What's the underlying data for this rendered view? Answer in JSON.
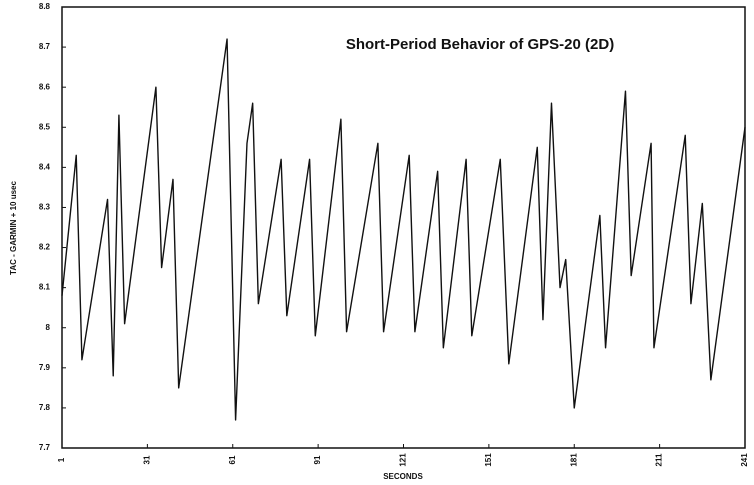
{
  "chart_data": {
    "type": "line",
    "title": "Short-Period Behavior of GPS-20 (2D)",
    "x_label": "SECONDS",
    "y_label": "TAC - GARMIN + 10 usec",
    "x": [
      1,
      6,
      8,
      17,
      19,
      21,
      23,
      34,
      36,
      40,
      42,
      59,
      62,
      66,
      68,
      70,
      78,
      80,
      88,
      90,
      99,
      101,
      112,
      114,
      123,
      125,
      133,
      135,
      143,
      145,
      155,
      158,
      168,
      170,
      173,
      176,
      178,
      181,
      190,
      192,
      199,
      201,
      208,
      209,
      220,
      222,
      226,
      229,
      241
    ],
    "series": [
      {
        "color": "#111111",
        "values": [
          8.08,
          8.43,
          7.92,
          8.32,
          7.88,
          8.53,
          8.01,
          8.6,
          8.15,
          8.37,
          7.85,
          8.72,
          7.77,
          8.46,
          8.56,
          8.06,
          8.42,
          8.03,
          8.42,
          7.98,
          8.52,
          7.99,
          8.46,
          7.99,
          8.43,
          7.99,
          8.39,
          7.95,
          8.42,
          7.98,
          8.42,
          7.91,
          8.45,
          8.02,
          8.56,
          8.1,
          8.17,
          7.8,
          8.28,
          7.95,
          8.59,
          8.13,
          8.46,
          7.95,
          8.48,
          8.06,
          8.31,
          7.87,
          8.5
        ]
      }
    ],
    "xlim": [
      1,
      241
    ],
    "xticks": [
      1,
      31,
      61,
      91,
      121,
      151,
      181,
      211,
      241
    ],
    "ylim": [
      7.7,
      8.8
    ],
    "yticks": [
      7.7,
      7.8,
      7.9,
      8,
      8.1,
      8.2,
      8.3,
      8.4,
      8.5,
      8.6,
      8.7,
      8.8
    ],
    "grid": false
  }
}
